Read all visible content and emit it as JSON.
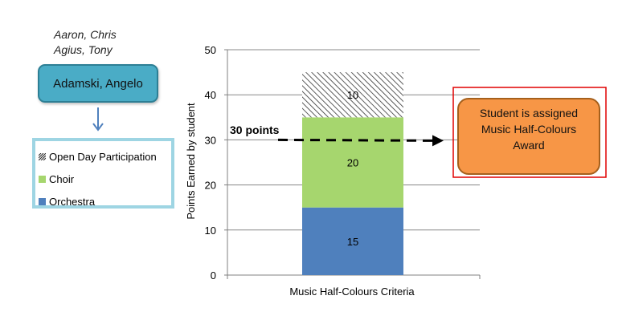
{
  "other_students": [
    "Aaron, Chris",
    "Agius, Tony"
  ],
  "selected_student": "Adamski, Angelo",
  "legend": [
    {
      "label": "Open Day Participation",
      "swatch": "hatch"
    },
    {
      "label": "Choir",
      "color": "#a6d66e"
    },
    {
      "label": "Orchestra",
      "color": "#4f80bd"
    }
  ],
  "threshold": {
    "label": "30 points",
    "value": 30
  },
  "award": {
    "label": "Student is assigned Music Half-Colours Award",
    "fill": "#f79646",
    "border": "#e00000"
  },
  "chart_data": {
    "type": "bar",
    "stacked": true,
    "categories": [
      "Music Half-Colours Criteria"
    ],
    "series": [
      {
        "name": "Orchestra",
        "values": [
          15
        ],
        "color": "#4f80bd"
      },
      {
        "name": "Choir",
        "values": [
          20
        ],
        "color": "#a6d66e"
      },
      {
        "name": "Open Day Participation",
        "values": [
          10
        ],
        "pattern": "hatch"
      }
    ],
    "xlabel": "Music Half-Colours Criteria",
    "ylabel": "Points Earned by student",
    "ylim": [
      0,
      50
    ],
    "yticks": [
      0,
      10,
      20,
      30,
      40,
      50
    ],
    "grid": true,
    "legend_position": "left"
  }
}
